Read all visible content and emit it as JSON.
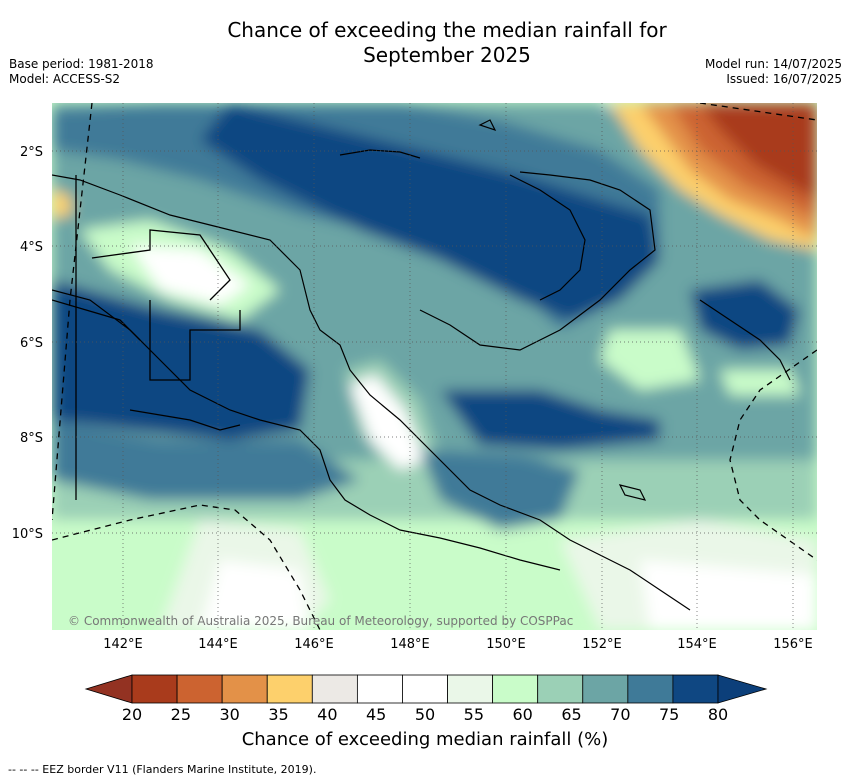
{
  "header": {
    "title_line1": "Chance of exceeding the median rainfall for",
    "title_line2": "September 2025",
    "base_period": "Base period: 1981-2018",
    "model": "Model: ACCESS-S2",
    "model_run": "Model run: 14/07/2025",
    "issued": "Issued: 16/07/2025"
  },
  "map": {
    "lat_labels": [
      "2°S",
      "4°S",
      "6°S",
      "8°S",
      "10°S"
    ],
    "lon_labels": [
      "142°E",
      "144°E",
      "146°E",
      "148°E",
      "150°E",
      "152°E",
      "154°E",
      "156°E"
    ],
    "copyright": "© Commonwealth of Australia 2025, Bureau of Meteorology, supported by COSPPac"
  },
  "colorbar": {
    "label": "Chance of exceeding median rainfall (%)",
    "ticks": [
      "20",
      "25",
      "30",
      "35",
      "40",
      "45",
      "50",
      "55",
      "60",
      "65",
      "70",
      "75",
      "80"
    ],
    "colors": [
      "#a93b1c",
      "#cc6330",
      "#e39148",
      "#fdd06c",
      "#ece9e5",
      "#ffffff",
      "#ffffff",
      "#eaf7e8",
      "#c9fcc9",
      "#9bd0b6",
      "#6ca5a5",
      "#3f7a98",
      "#0f4782"
    ],
    "under_color": "#933222",
    "over_color": "#0c3f7a"
  },
  "footnote": "-- -- -- EEZ border V11 (Flanders Marine Institute, 2019)."
}
